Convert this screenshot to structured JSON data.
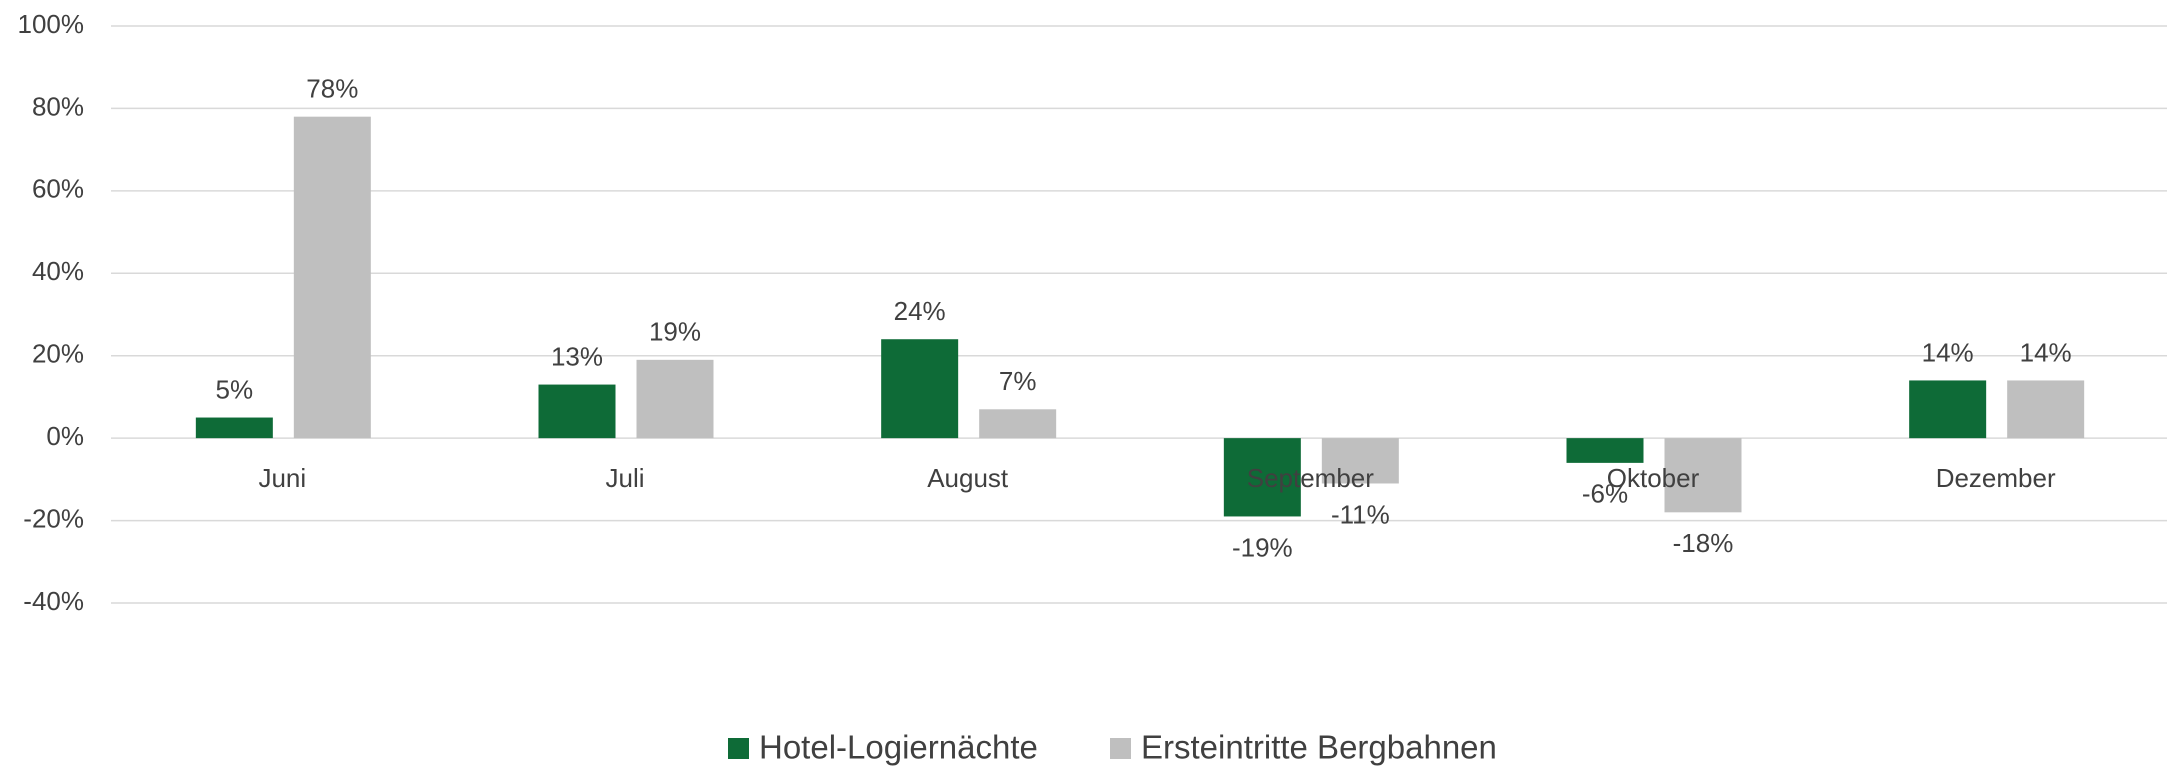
{
  "chart_data": {
    "type": "bar",
    "categories": [
      "Juni",
      "Juli",
      "August",
      "September",
      "Oktober",
      "Dezember"
    ],
    "series": [
      {
        "name": "Hotel-Logiernächte",
        "color": "#0e6b37",
        "values": [
          5,
          13,
          24,
          -19,
          -6,
          14
        ],
        "value_labels": [
          "5%",
          "13%",
          "24%",
          "-19%",
          "-6%",
          "14%"
        ]
      },
      {
        "name": "Ersteintritte Bergbahnen",
        "color": "#bfbfbf",
        "values": [
          78,
          19,
          7,
          -11,
          -18,
          14
        ],
        "value_labels": [
          "78%",
          "19%",
          "7%",
          "-11%",
          "-18%",
          "14%"
        ]
      }
    ],
    "ylim": [
      -40,
      100
    ],
    "yticks": [
      {
        "value": -40,
        "label": "-40%"
      },
      {
        "value": -20,
        "label": "-20%"
      },
      {
        "value": 0,
        "label": "0%"
      },
      {
        "value": 20,
        "label": "20%"
      },
      {
        "value": 40,
        "label": "40%"
      },
      {
        "value": 60,
        "label": "60%"
      },
      {
        "value": 80,
        "label": "80%"
      },
      {
        "value": 100,
        "label": "100%"
      }
    ],
    "grid": true,
    "legend": "bottom"
  }
}
